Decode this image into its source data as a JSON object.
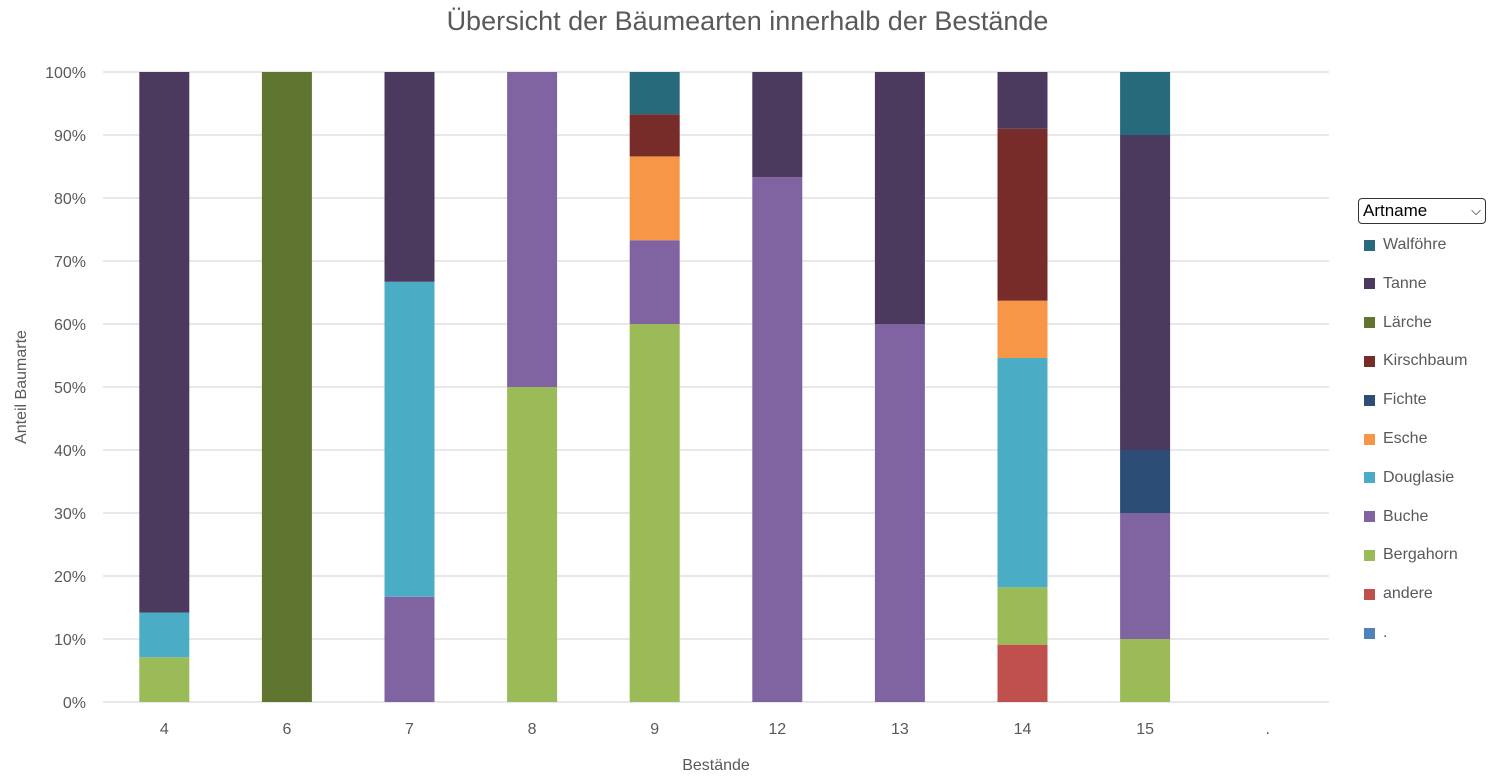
{
  "chart_data": {
    "type": "bar",
    "stacked": "percent",
    "title": "Übersicht der Bäumearten innerhalb der Bestände",
    "xlabel": "Bestände",
    "ylabel": "Anteil Baumarte",
    "ylim": [
      0,
      100
    ],
    "yticks": [
      "0%",
      "10%",
      "20%",
      "30%",
      "40%",
      "50%",
      "60%",
      "70%",
      "80%",
      "90%",
      "100%"
    ],
    "grid": true,
    "legend_position": "right",
    "legend_title": "Artname",
    "categories": [
      "4",
      "6",
      "7",
      "8",
      "9",
      "12",
      "13",
      "14",
      "15",
      "."
    ],
    "series": [
      {
        "name": ".",
        "color": "#4F81BD",
        "values": [
          0,
          0,
          0,
          0,
          0,
          0,
          0,
          0,
          0,
          0
        ]
      },
      {
        "name": "andere",
        "color": "#C0504D",
        "values": [
          0,
          0,
          0,
          0,
          0,
          0,
          0,
          9.1,
          0,
          0
        ]
      },
      {
        "name": "Bergahorn",
        "color": "#9BBB59",
        "values": [
          7.1,
          0,
          0,
          50,
          60,
          0,
          0,
          9.1,
          10,
          0
        ]
      },
      {
        "name": "Buche",
        "color": "#8064A2",
        "values": [
          0,
          0,
          16.7,
          50,
          13.3,
          83.3,
          60,
          0,
          20,
          0
        ]
      },
      {
        "name": "Douglasie",
        "color": "#4BACC6",
        "values": [
          7.1,
          0,
          50,
          0,
          0,
          0,
          0,
          36.4,
          0,
          0
        ]
      },
      {
        "name": "Esche",
        "color": "#F79646",
        "values": [
          0,
          0,
          0,
          0,
          13.3,
          0,
          0,
          9.1,
          0,
          0
        ]
      },
      {
        "name": "Fichte",
        "color": "#2C4D75",
        "values": [
          0,
          0,
          0,
          0,
          0,
          0,
          0,
          0,
          10,
          0
        ]
      },
      {
        "name": "Kirschbaum",
        "color": "#772C2A",
        "values": [
          0,
          0,
          0,
          0,
          6.7,
          0,
          0,
          27.3,
          0,
          0
        ]
      },
      {
        "name": "Lärche",
        "color": "#5F7530",
        "values": [
          0,
          100,
          0,
          0,
          0,
          0,
          0,
          0,
          0,
          0
        ]
      },
      {
        "name": "Tanne",
        "color": "#4B3A5E",
        "values": [
          85.8,
          0,
          33.3,
          0,
          0,
          16.7,
          40,
          9.0,
          50,
          0
        ]
      },
      {
        "name": "Walföhre",
        "color": "#276A7C",
        "values": [
          0,
          0,
          0,
          0,
          6.7,
          0,
          0,
          0,
          10,
          0
        ]
      }
    ]
  }
}
